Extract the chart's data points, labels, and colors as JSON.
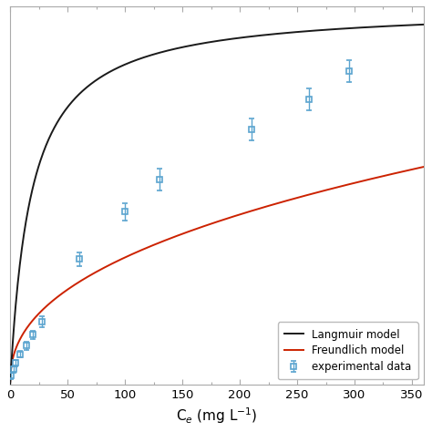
{
  "exp_x": [
    1,
    3,
    5,
    9,
    14,
    20,
    28,
    60,
    100,
    130,
    210,
    260,
    295
  ],
  "exp_y": [
    4,
    7,
    10,
    14,
    18,
    23,
    29,
    58,
    80,
    95,
    118,
    132,
    145
  ],
  "exp_yerr": [
    1.5,
    1.5,
    1.5,
    1.5,
    2,
    2,
    2.5,
    3,
    4,
    5,
    5,
    5,
    5
  ],
  "langmuir_qmax": 175.0,
  "langmuir_KL": 0.055,
  "freundlich_KF": 8.5,
  "freundlich_n": 0.42,
  "x_min": 0,
  "x_max": 360,
  "y_min": 0,
  "y_max": 175,
  "xtick_min": 0,
  "xtick_max": 350,
  "xtick_step": 50,
  "xlabel": "C$_{e}$ (mg L$^{-1}$)",
  "legend_labels": [
    "experimental data",
    "Langmuir model",
    "Freundlich model"
  ],
  "marker_color": "#5BA4CF",
  "langmuir_color": "#1a1a1a",
  "freundlich_color": "#cc2200",
  "background_color": "#ffffff",
  "marker_size": 5,
  "linewidth": 1.4,
  "legend_loc": "lower right",
  "legend_fontsize": 8.5,
  "tick_fontsize": 9.5,
  "label_fontsize": 11
}
